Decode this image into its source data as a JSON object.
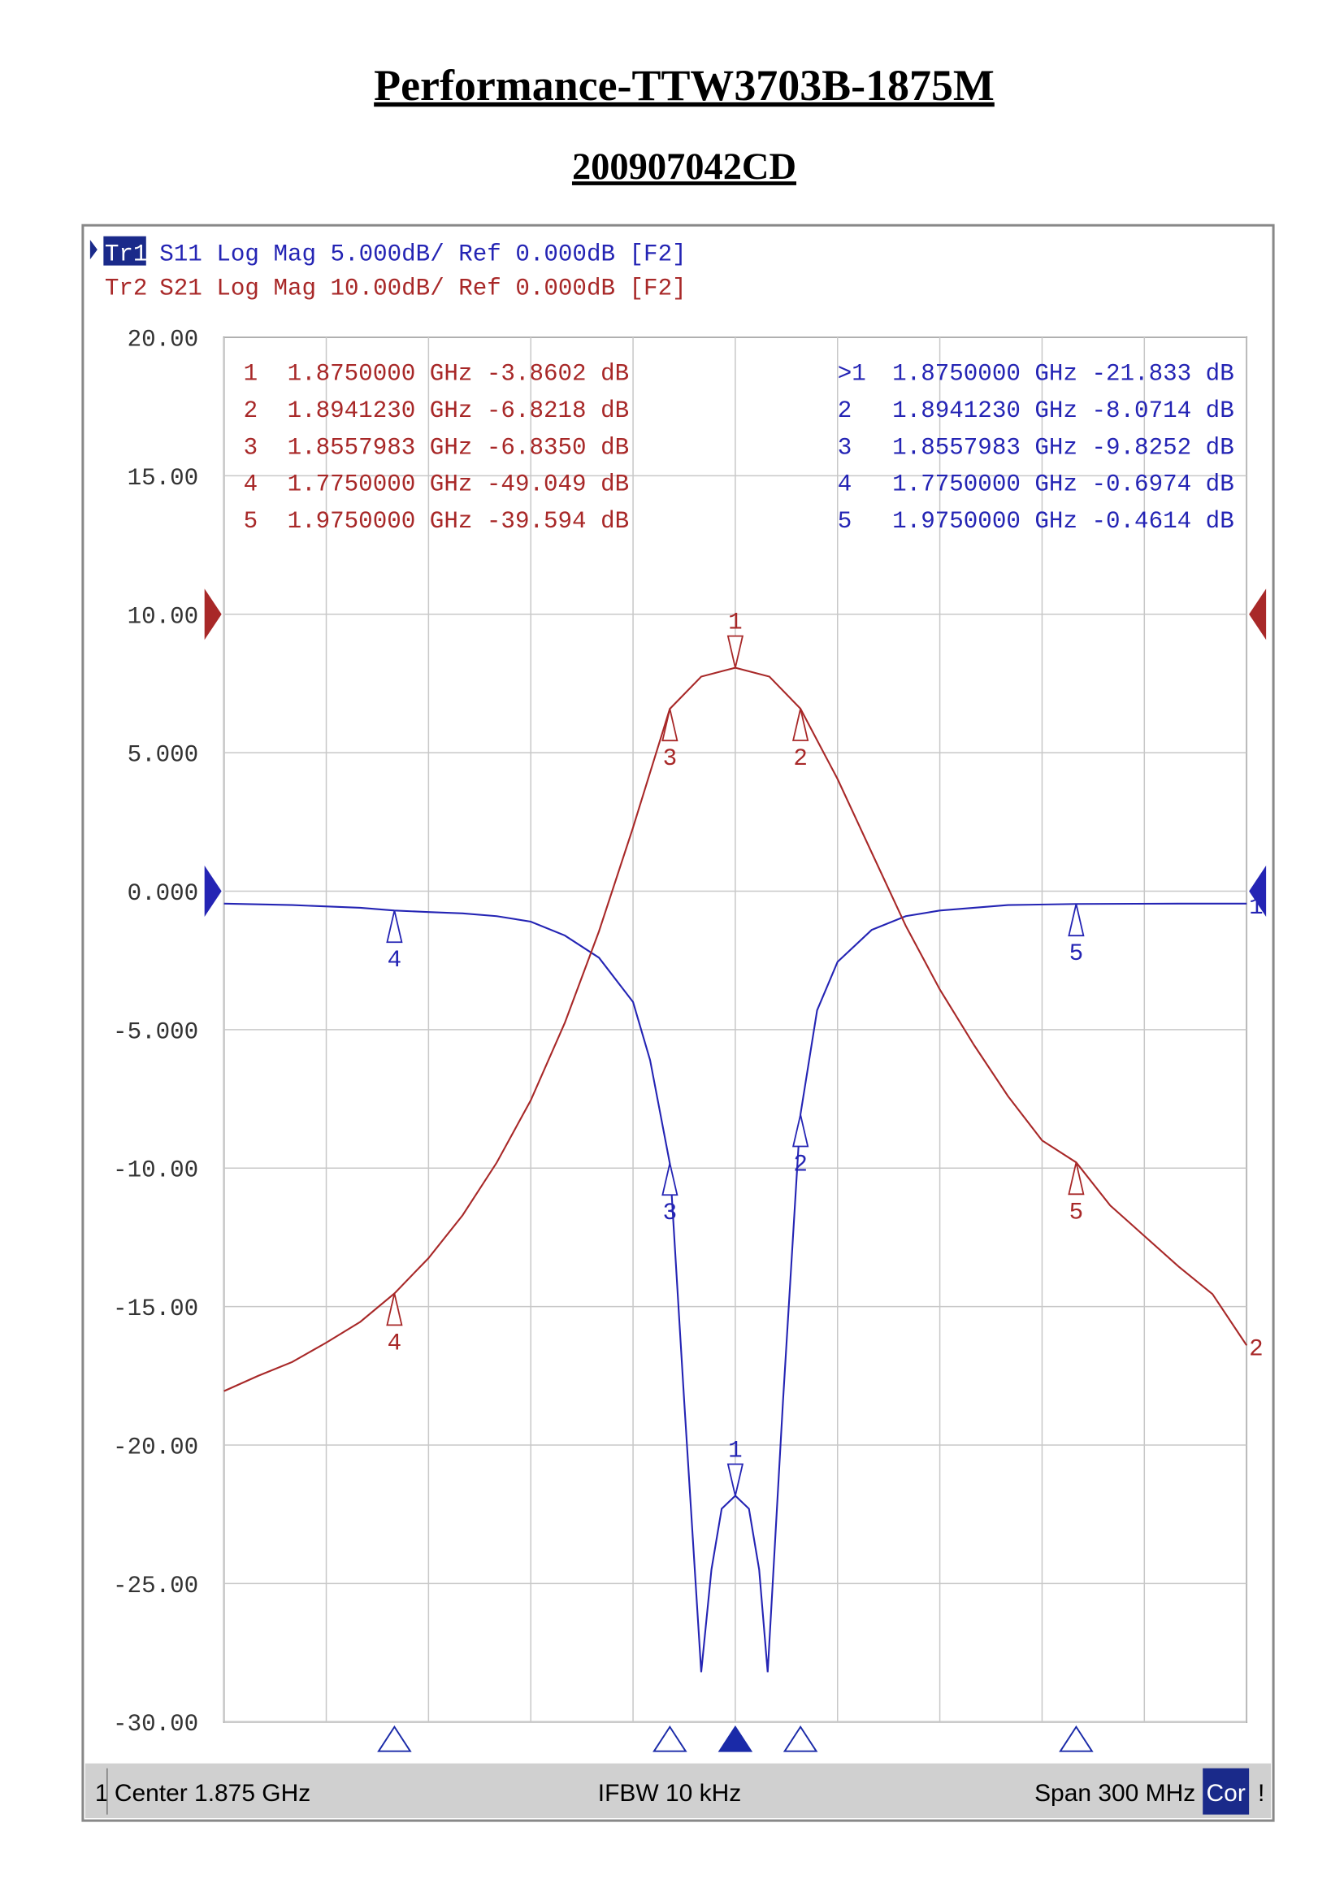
{
  "chart_data": {
    "type": "line",
    "title": "Performance-TTW3703B-1875M",
    "subtitle": "200907042CD",
    "xlim": [
      1.725,
      2.025
    ],
    "xticks": [
      1.725,
      1.755,
      1.785,
      1.815,
      1.845,
      1.875,
      1.905,
      1.935,
      1.965,
      1.995,
      2.025
    ],
    "ylim": [
      -30,
      20
    ],
    "yticks": [
      {
        "value": 20,
        "label": "20.00"
      },
      {
        "value": 15,
        "label": "15.00"
      },
      {
        "value": 10,
        "label": "10.00"
      },
      {
        "value": 5,
        "label": "5.000"
      },
      {
        "value": 0,
        "label": "0.000"
      },
      {
        "value": -5,
        "label": "-5.000"
      },
      {
        "value": -10,
        "label": "-10.00"
      },
      {
        "value": -15,
        "label": "-15.00"
      },
      {
        "value": -20,
        "label": "-20.00"
      },
      {
        "value": -25,
        "label": "-25.00"
      },
      {
        "value": -30,
        "label": "-30.00"
      }
    ],
    "y2lim": [
      -80,
      20
    ],
    "grid": true,
    "series": [
      {
        "name": "Tr1",
        "info": "S11 Log Mag 5.000dB/ Ref 0.000dB [F2]",
        "end_label": "1",
        "color": "#2424b4",
        "ref": 0,
        "active": true,
        "x": [
          1.725,
          1.745,
          1.765,
          1.775,
          1.785,
          1.795,
          1.805,
          1.815,
          1.825,
          1.835,
          1.845,
          1.85,
          1.8558,
          1.86,
          1.865,
          1.868,
          1.871,
          1.875,
          1.879,
          1.882,
          1.8845,
          1.889,
          1.8941,
          1.899,
          1.905,
          1.915,
          1.925,
          1.935,
          1.945,
          1.955,
          1.975,
          2.005,
          2.025
        ],
        "values": [
          -0.45,
          -0.5,
          -0.6,
          -0.7,
          -0.75,
          -0.8,
          -0.9,
          -1.1,
          -1.6,
          -2.4,
          -4.0,
          -6.1,
          -9.83,
          -18.4,
          -28.2,
          -24.5,
          -22.3,
          -21.83,
          -22.3,
          -24.5,
          -28.2,
          -18.4,
          -8.07,
          -4.3,
          -2.55,
          -1.4,
          -0.9,
          -0.7,
          -0.6,
          -0.5,
          -0.46,
          -0.45,
          -0.45
        ],
        "markers": [
          {
            "id": "1",
            "table_id": ">1",
            "x": 1.875,
            "value": -21.833,
            "label": "1.8750000 GHz -21.833 dB"
          },
          {
            "id": "2",
            "table_id": "2",
            "x": 1.894123,
            "value": -8.0714,
            "label": "1.8941230 GHz -8.0714 dB"
          },
          {
            "id": "3",
            "table_id": "3",
            "x": 1.8557983,
            "value": -9.8252,
            "label": "1.8557983 GHz -9.8252 dB"
          },
          {
            "id": "4",
            "table_id": "4",
            "x": 1.775,
            "value": -0.6974,
            "label": "1.7750000 GHz -0.6974 dB"
          },
          {
            "id": "5",
            "table_id": "5",
            "x": 1.975,
            "value": -0.4614,
            "label": "1.9750000 GHz -0.4614 dB"
          }
        ]
      },
      {
        "name": "Tr2",
        "info": "S21 Log Mag 10.00dB/ Ref 0.000dB [F2]",
        "end_label": "2",
        "color": "#a82828",
        "ref": 0,
        "axis": "y2",
        "x": [
          1.725,
          1.735,
          1.745,
          1.755,
          1.765,
          1.775,
          1.785,
          1.795,
          1.805,
          1.815,
          1.825,
          1.835,
          1.845,
          1.8558,
          1.865,
          1.875,
          1.885,
          1.8941,
          1.905,
          1.915,
          1.925,
          1.935,
          1.945,
          1.955,
          1.965,
          1.975,
          1.985,
          1.995,
          2.005,
          2.015,
          2.025
        ],
        "values": [
          -56.1,
          -55.0,
          -54.0,
          -52.6,
          -51.1,
          -49.05,
          -46.5,
          -43.4,
          -39.6,
          -35.1,
          -29.5,
          -22.9,
          -15.4,
          -6.835,
          -4.5,
          -3.86,
          -4.5,
          -6.82,
          -11.9,
          -17.2,
          -22.5,
          -27.1,
          -31.1,
          -34.8,
          -38.0,
          -39.59,
          -42.7,
          -44.9,
          -47.1,
          -49.1,
          -52.8
        ],
        "markers": [
          {
            "id": "1",
            "table_id": "1",
            "x": 1.875,
            "value": -3.8602,
            "label": "1.8750000 GHz -3.8602 dB"
          },
          {
            "id": "2",
            "table_id": "2",
            "x": 1.894123,
            "value": -6.8218,
            "label": "1.8941230 GHz -6.8218 dB"
          },
          {
            "id": "3",
            "table_id": "3",
            "x": 1.8557983,
            "value": -6.835,
            "label": "1.8557983 GHz -6.8350 dB"
          },
          {
            "id": "4",
            "table_id": "4",
            "x": 1.775,
            "value": -49.049,
            "label": "1.7750000 GHz -49.049 dB"
          },
          {
            "id": "5",
            "table_id": "5",
            "x": 1.975,
            "value": -39.594,
            "label": "1.9750000 GHz -39.594 dB"
          }
        ]
      }
    ],
    "status_bar": {
      "channel": "1",
      "center": "Center 1.875 GHz",
      "ifbw": "IFBW 10 kHz",
      "span": "Span 300 MHz",
      "cor": "Cor",
      "flag": "!"
    }
  }
}
